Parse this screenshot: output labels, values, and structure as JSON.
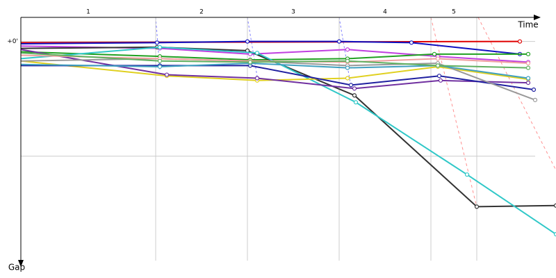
{
  "chart_data": {
    "type": "line",
    "x_label": "Time",
    "y_label": "Gap",
    "xlim": [
      0,
      770
    ],
    "ylim": [
      -0.21,
      1.91
    ],
    "yticks": [
      {
        "value": 0,
        "label": "+0'"
      },
      {
        "value": 1,
        "label": null
      }
    ],
    "laps": [
      "1",
      "2",
      "3",
      "4",
      "5"
    ],
    "lap_marks": [
      194,
      326,
      458,
      590,
      656
    ],
    "grid": true,
    "series": [
      {
        "color": "#e00000",
        "x": [
          0,
          718
        ],
        "values": [
          0.01,
          0.0
        ]
      },
      {
        "color": "#1010c0",
        "x": [
          0,
          196,
          326,
          458,
          562,
          718
        ],
        "values": [
          0.02,
          0.01,
          0.0,
          0.0,
          0.01,
          0.11
        ]
      },
      {
        "color": "#c040e0",
        "x": [
          0,
          200,
          330,
          470,
          600,
          730
        ],
        "values": [
          0.04,
          0.06,
          0.11,
          0.07,
          0.13,
          0.18
        ]
      },
      {
        "color": "#20a020",
        "x": [
          0,
          200,
          330,
          470,
          595,
          730
        ],
        "values": [
          0.09,
          0.13,
          0.16,
          0.15,
          0.11,
          0.11
        ]
      },
      {
        "color": "#333333",
        "x": [
          0,
          196,
          326,
          480,
          656,
          770
        ],
        "values": [
          0.06,
          0.05,
          0.08,
          0.47,
          1.44,
          1.43
        ]
      },
      {
        "color": "#30c8c8",
        "x": [
          0,
          200,
          340,
          482,
          642,
          770
        ],
        "values": [
          0.15,
          0.05,
          0.1,
          0.53,
          1.16,
          1.68
        ]
      },
      {
        "color": "#e0d020",
        "x": [
          0,
          210,
          340,
          470,
          600,
          730
        ],
        "values": [
          0.17,
          0.3,
          0.34,
          0.32,
          0.22,
          0.33
        ]
      },
      {
        "color": "#7030a0",
        "x": [
          0,
          210,
          340,
          480,
          604,
          730
        ],
        "values": [
          0.07,
          0.29,
          0.32,
          0.41,
          0.34,
          0.36
        ]
      },
      {
        "color": "#2020a0",
        "x": [
          0,
          200,
          330,
          475,
          602,
          738
        ],
        "values": [
          0.21,
          0.21,
          0.21,
          0.38,
          0.3,
          0.42
        ]
      },
      {
        "color": "#999999",
        "x": [
          0,
          200,
          330,
          470,
          600,
          740
        ],
        "values": [
          0.17,
          0.15,
          0.17,
          0.21,
          0.19,
          0.51
        ]
      },
      {
        "color": "#f0a0a0",
        "x": [
          0,
          200,
          330,
          470,
          600,
          730
        ],
        "values": [
          0.12,
          0.15,
          0.17,
          0.18,
          0.15,
          0.19
        ]
      },
      {
        "color": "#40a0c0",
        "x": [
          0,
          200,
          330,
          470,
          600,
          730
        ],
        "values": [
          0.2,
          0.22,
          0.19,
          0.23,
          0.21,
          0.32
        ]
      },
      {
        "color": "#60b060",
        "x": [
          0,
          200,
          330,
          470,
          600,
          730
        ],
        "values": [
          0.1,
          0.17,
          0.18,
          0.17,
          0.21,
          0.23
        ]
      }
    ]
  }
}
